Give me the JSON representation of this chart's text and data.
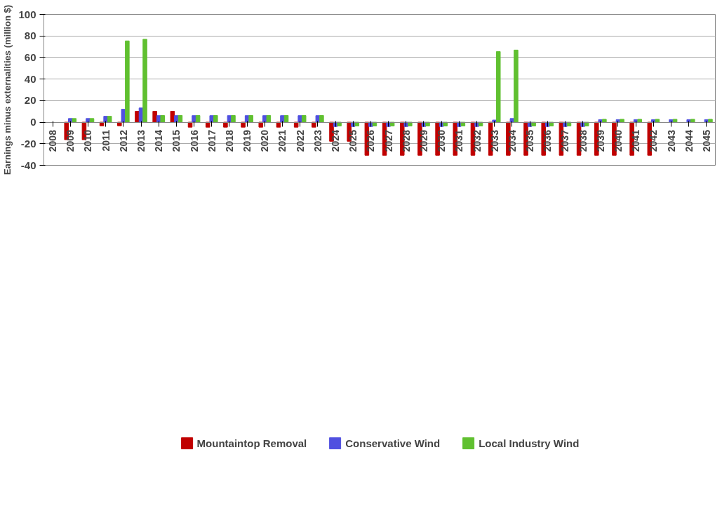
{
  "chart_data": {
    "type": "bar",
    "ylabel": "Earnings minus externalities (million $)",
    "categories": [
      "2008",
      "2009",
      "2010",
      "2011",
      "2012",
      "2013",
      "2014",
      "2015",
      "2016",
      "2017",
      "2018",
      "2019",
      "2020",
      "2021",
      "2022",
      "2023",
      "2024",
      "2025",
      "2026",
      "2027",
      "2028",
      "2029",
      "2030",
      "2031",
      "2032",
      "2033",
      "2034",
      "2035",
      "2036",
      "2037",
      "2038",
      "2039",
      "2040",
      "2041",
      "2042",
      "2043",
      "2044",
      "2045"
    ],
    "series": [
      {
        "name": "Mountaintop Removal",
        "color": "#c00000",
        "values": [
          null,
          -16.2,
          -16.2,
          -3.3,
          -3.3,
          10.1,
          10.1,
          10.1,
          -4.6,
          -4.6,
          -4.6,
          -4.6,
          -4.6,
          -4.6,
          -4.6,
          -4.6,
          -17.7,
          -17.7,
          -30.7,
          -30.7,
          -30.7,
          -30.7,
          -30.7,
          -30.7,
          -30.7,
          -30.7,
          -30.7,
          -30.7,
          -30.7,
          -30.7,
          -30.7,
          -30.7,
          -30.7,
          -30.7,
          -30.7,
          null,
          null,
          null
        ]
      },
      {
        "name": "Conservative Wind",
        "color": "#5050e0",
        "values": [
          null,
          3.4,
          3.4,
          5.5,
          12.0,
          13.2,
          6.1,
          6.1,
          6.1,
          6.1,
          6.1,
          6.1,
          6.1,
          6.1,
          6.1,
          6.1,
          -4.0,
          -4.0,
          -4.0,
          -4.0,
          -4.0,
          -4.0,
          -4.0,
          -4.0,
          -4.0,
          2.0,
          3.4,
          -4.0,
          -4.0,
          -4.0,
          -4.0,
          2.4,
          2.4,
          2.4,
          2.4,
          2.4,
          2.4,
          2.4
        ]
      },
      {
        "name": "Local Industry Wind",
        "color": "#60c030",
        "values": [
          null,
          3.4,
          3.4,
          5.5,
          75.4,
          76.9,
          6.2,
          6.2,
          6.2,
          6.2,
          6.2,
          6.2,
          6.2,
          6.2,
          6.2,
          6.2,
          -3.5,
          -3.5,
          -3.5,
          -3.5,
          -3.5,
          -3.5,
          -3.5,
          -3.5,
          -3.5,
          65.5,
          66.9,
          -3.5,
          -3.5,
          -3.5,
          -3.5,
          2.7,
          2.7,
          2.7,
          2.7,
          2.7,
          2.7,
          2.7
        ]
      }
    ],
    "ylim": [
      -40,
      100
    ],
    "yticks": [
      -40,
      -20,
      0,
      20,
      40,
      60,
      80,
      100
    ],
    "grid": "y",
    "legend": "bottom"
  }
}
